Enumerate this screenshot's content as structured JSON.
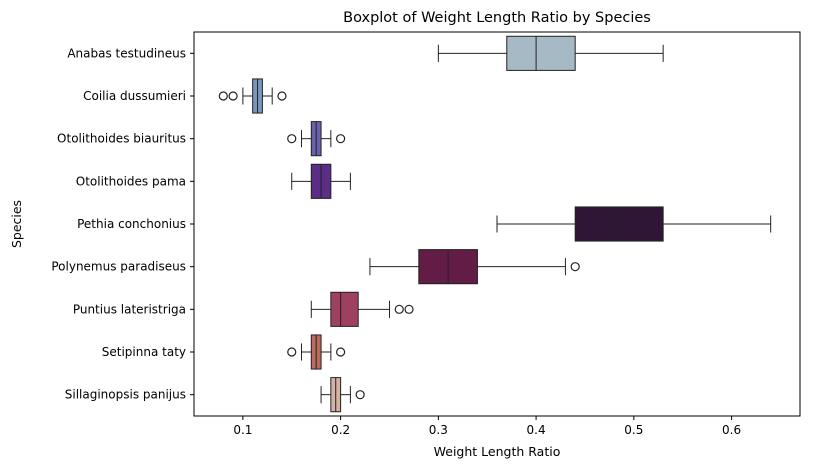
{
  "chart_data": {
    "type": "boxplot",
    "orientation": "horizontal",
    "title": "Boxplot of Weight Length Ratio by Species",
    "xlabel": "Weight Length Ratio",
    "ylabel": "Species",
    "xlim": [
      0.05,
      0.67
    ],
    "xticks": [
      0.1,
      0.2,
      0.3,
      0.4,
      0.5,
      0.6
    ],
    "xtick_labels": [
      "0.1",
      "0.2",
      "0.3",
      "0.4",
      "0.5",
      "0.6"
    ],
    "grid": false,
    "categories": [
      "Anabas testudineus",
      "Coilia dussumieri",
      "Otolithoides biauritus",
      "Otolithoides pama",
      "Pethia conchonius",
      "Polynemus paradiseus",
      "Puntius lateristriga",
      "Setipinna taty",
      "Sillaginopsis panijus"
    ],
    "boxes": [
      {
        "whisker_low": 0.3,
        "q1": 0.37,
        "median": 0.4,
        "q3": 0.44,
        "whisker_high": 0.53,
        "outliers": [],
        "color": "#a5bac5"
      },
      {
        "whisker_low": 0.1,
        "q1": 0.11,
        "median": 0.115,
        "q3": 0.12,
        "whisker_high": 0.13,
        "outliers": [
          0.08,
          0.09,
          0.14
        ],
        "color": "#7b95bd"
      },
      {
        "whisker_low": 0.16,
        "q1": 0.17,
        "median": 0.175,
        "q3": 0.18,
        "whisker_high": 0.19,
        "outliers": [
          0.15,
          0.2
        ],
        "color": "#6962ad"
      },
      {
        "whisker_low": 0.15,
        "q1": 0.17,
        "median": 0.18,
        "q3": 0.19,
        "whisker_high": 0.21,
        "outliers": [],
        "color": "#5a2d86"
      },
      {
        "whisker_low": 0.36,
        "q1": 0.44,
        "median": 0.48,
        "q3": 0.53,
        "whisker_high": 0.64,
        "outliers": [],
        "color": "#2f1636"
      },
      {
        "whisker_low": 0.23,
        "q1": 0.28,
        "median": 0.31,
        "q3": 0.34,
        "whisker_high": 0.43,
        "outliers": [
          0.44
        ],
        "color": "#621c45"
      },
      {
        "whisker_low": 0.17,
        "q1": 0.19,
        "median": 0.2,
        "q3": 0.218,
        "whisker_high": 0.25,
        "outliers": [
          0.26,
          0.27
        ],
        "color": "#9e4060"
      },
      {
        "whisker_low": 0.16,
        "q1": 0.17,
        "median": 0.175,
        "q3": 0.18,
        "whisker_high": 0.19,
        "outliers": [
          0.15,
          0.2
        ],
        "color": "#bd6b5d"
      },
      {
        "whisker_low": 0.18,
        "q1": 0.19,
        "median": 0.195,
        "q3": 0.2,
        "whisker_high": 0.21,
        "outliers": [
          0.22
        ],
        "color": "#d4b3a5"
      }
    ]
  }
}
